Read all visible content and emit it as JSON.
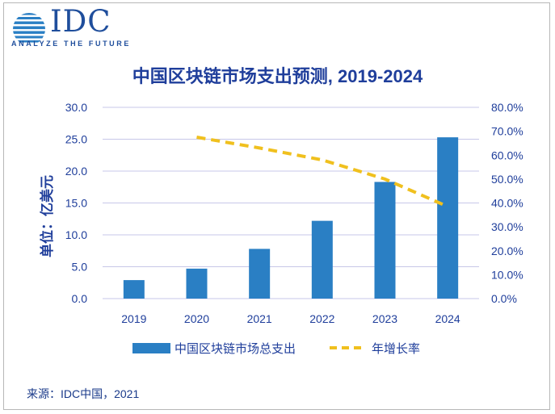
{
  "header": {
    "logo_text": "IDC",
    "tagline": "ANALYZE THE FUTURE",
    "logo_icon": "globe-icon"
  },
  "source_text": "来源：IDC中国，2021",
  "colors": {
    "bar": "#2a7fc4",
    "line": "#f0c01e",
    "axis_text": "#1f3e9b",
    "gridline": "#c7c7e8"
  },
  "chart_data": {
    "type": "bar",
    "title": "中国区块链市场支出预测, 2019-2024",
    "categories": [
      "2019",
      "2020",
      "2021",
      "2022",
      "2023",
      "2024"
    ],
    "series": [
      {
        "name": "中国区块链市场总支出",
        "type": "bar",
        "axis": "left",
        "values": [
          2.9,
          4.7,
          7.8,
          12.2,
          18.3,
          25.3
        ]
      },
      {
        "name": "年增长率",
        "type": "line",
        "style": "dashed",
        "axis": "right",
        "values": [
          null,
          67.5,
          63.0,
          58.0,
          50.0,
          38.5
        ]
      }
    ],
    "ylabel": "单位：亿美元",
    "ylim": [
      0,
      30
    ],
    "y_ticks": [
      "0.0",
      "5.0",
      "10.0",
      "15.0",
      "20.0",
      "25.0",
      "30.0"
    ],
    "y2lim": [
      0,
      80
    ],
    "y2_ticks": [
      "0.0%",
      "10.0%",
      "20.0%",
      "30.0%",
      "40.0%",
      "50.0%",
      "60.0%",
      "70.0%",
      "80.0%"
    ],
    "grid": true,
    "legend_position": "bottom"
  }
}
